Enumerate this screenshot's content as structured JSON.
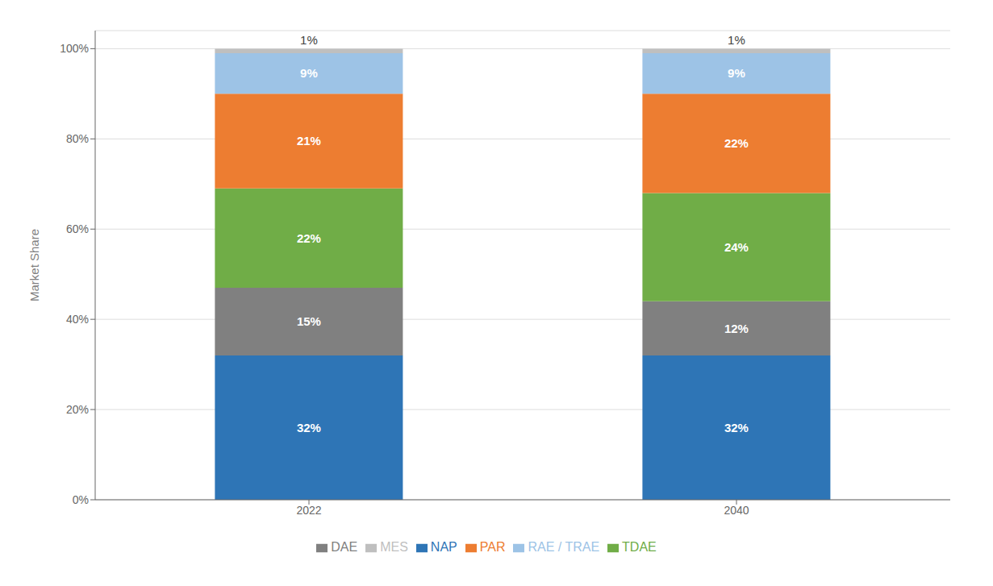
{
  "chart_data": {
    "type": "bar",
    "stacked": true,
    "categories": [
      "2022",
      "2040"
    ],
    "series": [
      {
        "name": "NAP",
        "color": "#2E75B6",
        "values": [
          32,
          32
        ],
        "value_labels": [
          "32%",
          "32%"
        ]
      },
      {
        "name": "DAE",
        "color": "#808080",
        "values": [
          15,
          12
        ],
        "value_labels": [
          "15%",
          "12%"
        ]
      },
      {
        "name": "TDAE",
        "color": "#70AD47",
        "values": [
          22,
          24
        ],
        "value_labels": [
          "22%",
          "24%"
        ]
      },
      {
        "name": "PAR",
        "color": "#ED7D31",
        "values": [
          21,
          22
        ],
        "value_labels": [
          "21%",
          "22%"
        ]
      },
      {
        "name": "RAE / TRAE",
        "color": "#9DC3E6",
        "values": [
          9,
          9
        ],
        "value_labels": [
          "9%",
          "9%"
        ]
      },
      {
        "name": "MES",
        "color": "#BFBFBF",
        "values": [
          1,
          1
        ],
        "value_labels": [
          "1%",
          "1%"
        ]
      }
    ],
    "ylabel": "Market Share",
    "ylim": [
      0,
      104
    ],
    "yticks": [
      {
        "value": 0,
        "label": "0%"
      },
      {
        "value": 20,
        "label": "20%"
      },
      {
        "value": 40,
        "label": "40%"
      },
      {
        "value": 60,
        "label": "60%"
      },
      {
        "value": 80,
        "label": "80%"
      },
      {
        "value": 100,
        "label": "100%"
      }
    ],
    "grid": true,
    "legend": "bottom",
    "data_labels": true
  }
}
